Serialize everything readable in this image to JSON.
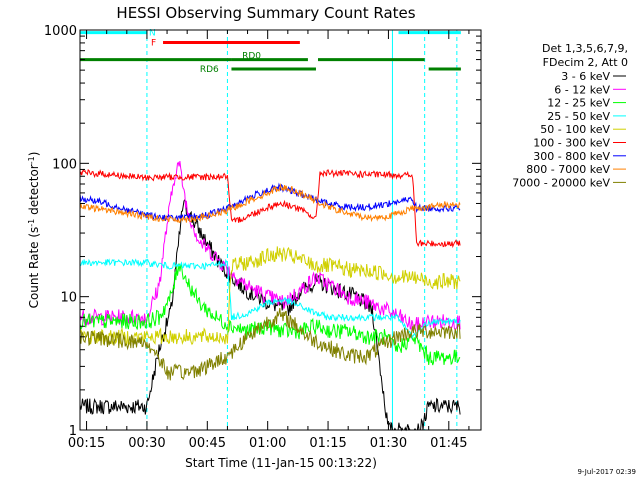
{
  "chart_data": {
    "type": "line",
    "title": "HESSI Observing Summary Count Rates",
    "xlabel": "Start Time (11-Jan-15 00:13:22)",
    "ylabel_main": "Count Rate (s",
    "ylabel_sup1": "-1",
    "ylabel_mid": " detector",
    "ylabel_sup2": "-1",
    "ylabel_end": ")",
    "y_scale": "log",
    "ylim": [
      1,
      1000
    ],
    "xlim_min": [
      13.37,
      113
    ],
    "x_ticks": [
      {
        "m": 15,
        "label": "00:15"
      },
      {
        "m": 30,
        "label": "00:30"
      },
      {
        "m": 45,
        "label": "00:45"
      },
      {
        "m": 60,
        "label": "01:00"
      },
      {
        "m": 75,
        "label": "01:15"
      },
      {
        "m": 90,
        "label": "01:30"
      },
      {
        "m": 105,
        "label": "01:45"
      }
    ],
    "y_ticks": [
      {
        "v": 1,
        "label": "1"
      },
      {
        "v": 10,
        "label": "10"
      },
      {
        "v": 100,
        "label": "100"
      },
      {
        "v": 1000,
        "label": "1000"
      }
    ],
    "legend_header": [
      "Det 1,3,5,6,7,9,",
      "FDecim 2, Att 0"
    ],
    "series": [
      {
        "name": "3 - 6 keV",
        "color": "#000000",
        "points": [
          [
            13.4,
            1.5
          ],
          [
            30,
            1.5
          ],
          [
            33,
            4
          ],
          [
            36,
            8
          ],
          [
            39,
            50
          ],
          [
            42,
            35
          ],
          [
            45,
            25
          ],
          [
            48,
            18
          ],
          [
            51,
            14
          ],
          [
            55,
            11
          ],
          [
            60,
            9
          ],
          [
            65,
            8
          ],
          [
            68,
            11
          ],
          [
            72,
            13
          ],
          [
            75,
            12
          ],
          [
            78,
            11
          ],
          [
            82,
            10
          ],
          [
            86,
            8
          ],
          [
            90,
            1
          ],
          [
            98,
            1
          ],
          [
            100,
            1.5
          ],
          [
            108,
            1.5
          ]
        ]
      },
      {
        "name": "6 - 12 keV",
        "color": "#ff00ff",
        "points": [
          [
            13.4,
            7
          ],
          [
            30,
            7
          ],
          [
            33,
            12
          ],
          [
            35,
            35
          ],
          [
            37,
            85
          ],
          [
            38,
            100
          ],
          [
            40,
            45
          ],
          [
            43,
            26
          ],
          [
            47,
            20
          ],
          [
            51,
            15
          ],
          [
            55,
            12
          ],
          [
            60,
            10
          ],
          [
            64,
            9
          ],
          [
            68,
            11
          ],
          [
            72,
            14
          ],
          [
            76,
            12
          ],
          [
            80,
            10
          ],
          [
            85,
            9
          ],
          [
            89,
            8
          ],
          [
            93,
            7
          ],
          [
            96,
            6
          ],
          [
            100,
            6.5
          ],
          [
            108,
            6.5
          ]
        ]
      },
      {
        "name": "12 - 25 keV",
        "color": "#00ff00",
        "points": [
          [
            13.4,
            6.5
          ],
          [
            30,
            6.5
          ],
          [
            33,
            7
          ],
          [
            36,
            10
          ],
          [
            38,
            18
          ],
          [
            40,
            13
          ],
          [
            43,
            9
          ],
          [
            47,
            7
          ],
          [
            51,
            6
          ],
          [
            55,
            5.5
          ],
          [
            60,
            6
          ],
          [
            64,
            5.5
          ],
          [
            68,
            5.5
          ],
          [
            72,
            6
          ],
          [
            76,
            5.5
          ],
          [
            80,
            5.5
          ],
          [
            85,
            5
          ],
          [
            89,
            5
          ],
          [
            92,
            4
          ],
          [
            96,
            5
          ],
          [
            100,
            3.5
          ],
          [
            108,
            3.5
          ]
        ]
      },
      {
        "name": "25 - 50 keV",
        "color": "#00ffff",
        "points": [
          [
            13.4,
            18
          ],
          [
            30,
            18
          ],
          [
            35,
            17
          ],
          [
            40,
            17
          ],
          [
            45,
            17
          ],
          [
            50,
            18
          ],
          [
            51,
            7
          ],
          [
            55,
            7.5
          ],
          [
            60,
            9
          ],
          [
            64,
            9.5
          ],
          [
            68,
            8.5
          ],
          [
            72,
            7.5
          ],
          [
            75,
            7
          ],
          [
            80,
            7
          ],
          [
            85,
            7
          ],
          [
            89,
            7
          ],
          [
            92,
            7
          ],
          [
            96,
            5
          ],
          [
            100,
            6.5
          ],
          [
            108,
            6.5
          ]
        ]
      },
      {
        "name": "50 - 100 keV",
        "color": "#d0d000",
        "points": [
          [
            13.4,
            5
          ],
          [
            30,
            5
          ],
          [
            40,
            5
          ],
          [
            50,
            5
          ],
          [
            51,
            17
          ],
          [
            55,
            18
          ],
          [
            60,
            20
          ],
          [
            63,
            21
          ],
          [
            66,
            20
          ],
          [
            70,
            18
          ],
          [
            72,
            17
          ],
          [
            75,
            17
          ],
          [
            80,
            16
          ],
          [
            85,
            15.5
          ],
          [
            89,
            15
          ],
          [
            92,
            14
          ],
          [
            96,
            14
          ],
          [
            100,
            13
          ],
          [
            108,
            13
          ]
        ]
      },
      {
        "name": "100 - 300 keV",
        "color": "#ff0000",
        "points": [
          [
            13.4,
            85
          ],
          [
            20,
            83
          ],
          [
            25,
            80
          ],
          [
            30,
            78
          ],
          [
            35,
            79
          ],
          [
            40,
            79
          ],
          [
            45,
            79
          ],
          [
            50,
            80
          ],
          [
            51,
            36
          ],
          [
            55,
            40
          ],
          [
            60,
            47
          ],
          [
            63,
            50
          ],
          [
            66,
            48
          ],
          [
            70,
            42
          ],
          [
            72,
            38
          ],
          [
            73,
            85
          ],
          [
            78,
            84
          ],
          [
            83,
            83
          ],
          [
            88,
            82
          ],
          [
            92,
            82
          ],
          [
            96,
            81
          ],
          [
            97,
            25
          ],
          [
            100,
            25
          ],
          [
            108,
            25
          ]
        ]
      },
      {
        "name": "300 - 800 keV",
        "color": "#0000ff",
        "points": [
          [
            13.4,
            55
          ],
          [
            20,
            50
          ],
          [
            25,
            45
          ],
          [
            30,
            41
          ],
          [
            35,
            39
          ],
          [
            40,
            39
          ],
          [
            45,
            41
          ],
          [
            50,
            46
          ],
          [
            55,
            55
          ],
          [
            60,
            63
          ],
          [
            63,
            66
          ],
          [
            66,
            62
          ],
          [
            70,
            56
          ],
          [
            75,
            50
          ],
          [
            80,
            47
          ],
          [
            85,
            47
          ],
          [
            90,
            50
          ],
          [
            96,
            54
          ],
          [
            97,
            46
          ],
          [
            102,
            46
          ],
          [
            108,
            46
          ]
        ]
      },
      {
        "name": "800 - 7000 keV",
        "color": "#ff8000",
        "points": [
          [
            13.4,
            47
          ],
          [
            20,
            45
          ],
          [
            25,
            42
          ],
          [
            30,
            40
          ],
          [
            35,
            38
          ],
          [
            40,
            38
          ],
          [
            45,
            40
          ],
          [
            50,
            44
          ],
          [
            55,
            52
          ],
          [
            60,
            60
          ],
          [
            63,
            66
          ],
          [
            66,
            64
          ],
          [
            70,
            56
          ],
          [
            75,
            47
          ],
          [
            80,
            42
          ],
          [
            85,
            39
          ],
          [
            90,
            40
          ],
          [
            96,
            46
          ],
          [
            100,
            47
          ],
          [
            104,
            49
          ],
          [
            108,
            49
          ]
        ]
      },
      {
        "name": "7000 - 20000 keV",
        "color": "#808000",
        "points": [
          [
            13.4,
            5
          ],
          [
            30,
            4.5
          ],
          [
            33,
            3.5
          ],
          [
            35,
            2.7
          ],
          [
            40,
            2.7
          ],
          [
            45,
            3
          ],
          [
            50,
            3.6
          ],
          [
            55,
            5
          ],
          [
            60,
            6.5
          ],
          [
            63,
            7.2
          ],
          [
            66,
            6.5
          ],
          [
            70,
            5
          ],
          [
            75,
            4.2
          ],
          [
            80,
            3.6
          ],
          [
            85,
            3.6
          ],
          [
            88,
            4.2
          ],
          [
            92,
            5
          ],
          [
            96,
            5.5
          ],
          [
            100,
            5.5
          ],
          [
            108,
            5.5
          ]
        ]
      }
    ],
    "status_bars": [
      {
        "label": "N",
        "color": "#00ffff",
        "y": 955,
        "segments": [
          [
            13.4,
            30
          ],
          [
            92.5,
            108
          ]
        ]
      },
      {
        "label": "F",
        "color": "#ff0000",
        "y": 805,
        "segments": [
          [
            34,
            68
          ]
        ]
      },
      {
        "label": "RD0",
        "color": "#008000",
        "y": 600,
        "segments": [
          [
            13.4,
            51
          ],
          [
            51,
            70
          ],
          [
            72.5,
            99
          ]
        ]
      },
      {
        "label": "RD6",
        "color": "#008000",
        "y": 510,
        "segments": [
          [
            51,
            72
          ],
          [
            100,
            108
          ]
        ]
      }
    ],
    "vlines_cyan": [
      30,
      50,
      91,
      99,
      107
    ],
    "vlines_cyan_solid": [
      91
    ],
    "timestamp": "9-Jul-2017 02:39"
  }
}
